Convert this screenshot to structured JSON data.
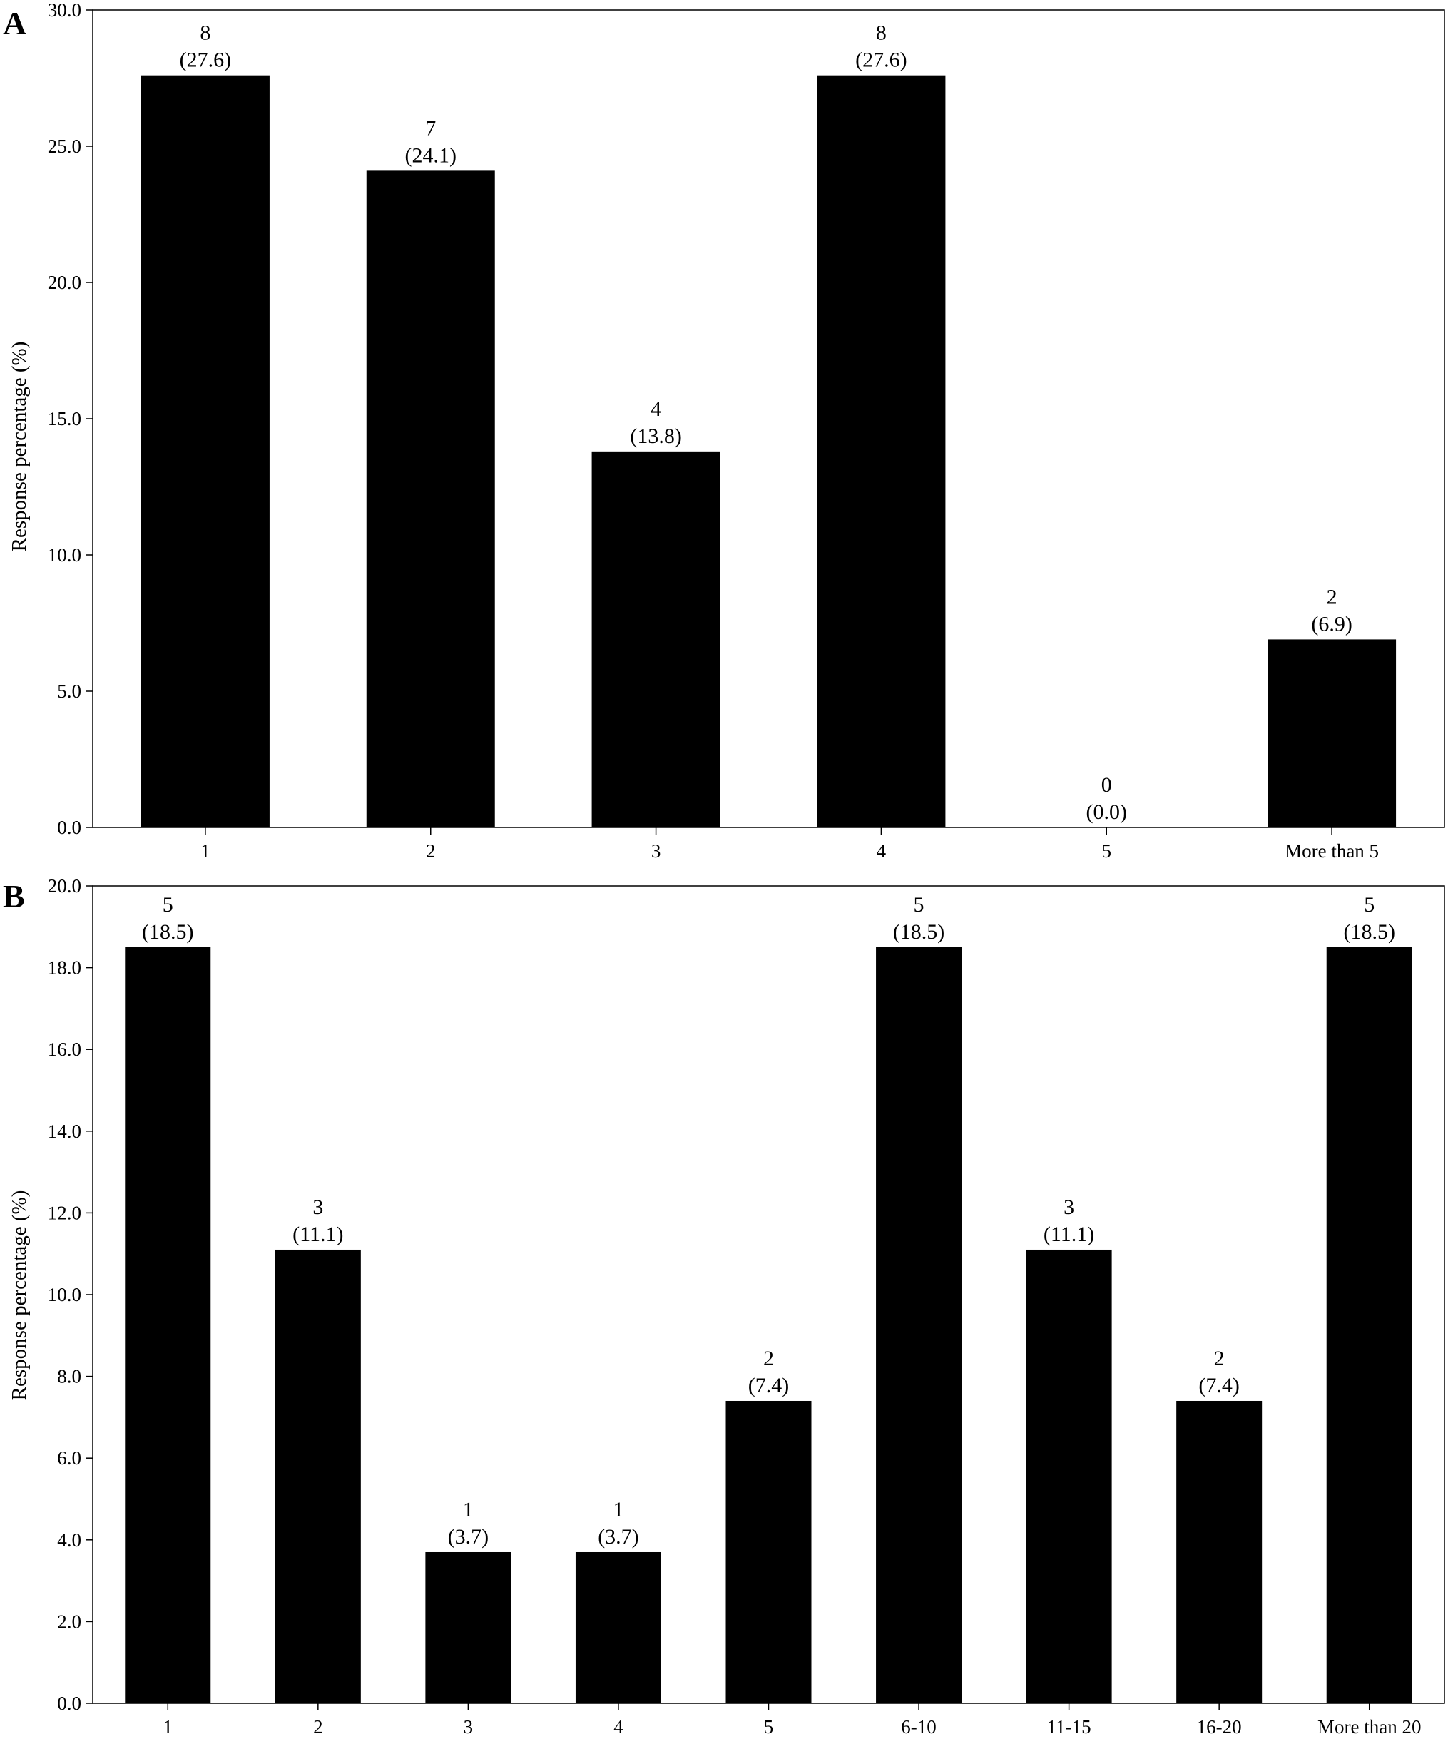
{
  "chart_data": [
    {
      "panel": "A",
      "type": "bar",
      "ylabel": "Response  percentage (%)",
      "ylim": [
        0,
        30
      ],
      "yticks": [
        "0.0",
        "5.0",
        "10.0",
        "15.0",
        "20.0",
        "25.0",
        "30.0"
      ],
      "categories": [
        "1",
        "2",
        "3",
        "4",
        "5",
        "More than 5"
      ],
      "values": [
        27.6,
        24.1,
        13.8,
        27.6,
        0.0,
        6.9
      ],
      "counts": [
        "8",
        "7",
        "4",
        "8",
        "0",
        "2"
      ],
      "percent_labels": [
        "(27.6)",
        "(24.1)",
        "(13.8)",
        "(27.6)",
        "(0.0)",
        "(6.9)"
      ],
      "bar_color": "#000000",
      "grid": false
    },
    {
      "panel": "B",
      "type": "bar",
      "ylabel": "Response  percentage (%)",
      "ylim": [
        0,
        20
      ],
      "yticks": [
        "0.0",
        "2.0",
        "4.0",
        "6.0",
        "8.0",
        "10.0",
        "12.0",
        "14.0",
        "16.0",
        "18.0",
        "20.0"
      ],
      "categories": [
        "1",
        "2",
        "3",
        "4",
        "5",
        "6-10",
        "11-15",
        "16-20",
        "More than 20"
      ],
      "values": [
        18.5,
        11.1,
        3.7,
        3.7,
        7.4,
        18.5,
        11.1,
        7.4,
        18.5
      ],
      "counts": [
        "5",
        "3",
        "1",
        "1",
        "2",
        "5",
        "3",
        "2",
        "5"
      ],
      "percent_labels": [
        "(18.5)",
        "(11.1)",
        "(3.7)",
        "(3.7)",
        "(7.4)",
        "(18.5)",
        "(11.1)",
        "(7.4)",
        "(18.5)"
      ],
      "bar_color": "#000000",
      "grid": false
    }
  ]
}
